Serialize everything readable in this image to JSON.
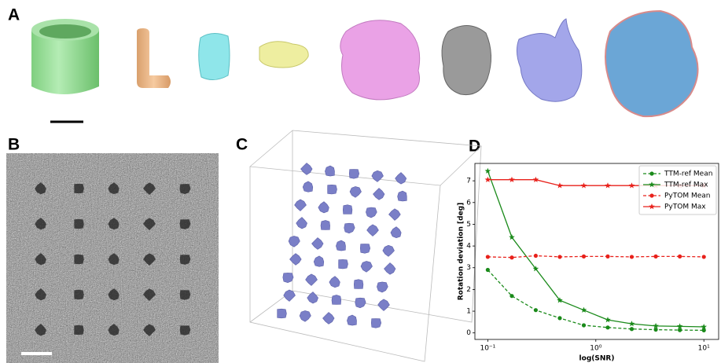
{
  "panels": [
    "A",
    "B",
    "C",
    "D"
  ],
  "chart_data": {
    "type": "line",
    "xlabel": "log(SNR)",
    "ylabel": "Rotation deviation [deg]",
    "xscale": "log",
    "xlim": [
      0.076,
      13.7
    ],
    "xticks": [
      {
        "value": 0.1,
        "label": "10⁻¹"
      },
      {
        "value": 1,
        "label": "10⁰"
      },
      {
        "value": 10,
        "label": "10¹"
      }
    ],
    "ylim": [
      -0.3,
      7.8
    ],
    "yticks": [
      0,
      1,
      2,
      3,
      4,
      5,
      6,
      7
    ],
    "legend": "upper right",
    "x": [
      0.1,
      0.167,
      0.278,
      0.464,
      0.774,
      1.29,
      2.15,
      3.59,
      5.99,
      10
    ],
    "series": [
      {
        "name": "TTM-ref Mean",
        "color": "#1a8a1a",
        "dash": "dashed",
        "marker": "circle",
        "values": [
          2.9,
          1.7,
          1.05,
          0.68,
          0.35,
          0.25,
          0.18,
          0.15,
          0.13,
          0.12
        ]
      },
      {
        "name": "TTM-ref Max",
        "color": "#1a8a1a",
        "dash": "solid",
        "marker": "star",
        "values": [
          7.45,
          4.4,
          2.95,
          1.5,
          1.05,
          0.6,
          0.42,
          0.32,
          0.3,
          0.28
        ]
      },
      {
        "name": "PyTOM Mean",
        "color": "#e8211b",
        "dash": "dashed",
        "marker": "circle",
        "values": [
          3.5,
          3.47,
          3.55,
          3.5,
          3.52,
          3.52,
          3.5,
          3.52,
          3.52,
          3.5
        ]
      },
      {
        "name": "PyTOM Max",
        "color": "#e8211b",
        "dash": "solid",
        "marker": "star",
        "values": [
          7.05,
          7.05,
          7.05,
          6.78,
          6.78,
          6.78,
          6.78,
          6.78,
          6.78,
          6.78
        ]
      }
    ]
  }
}
